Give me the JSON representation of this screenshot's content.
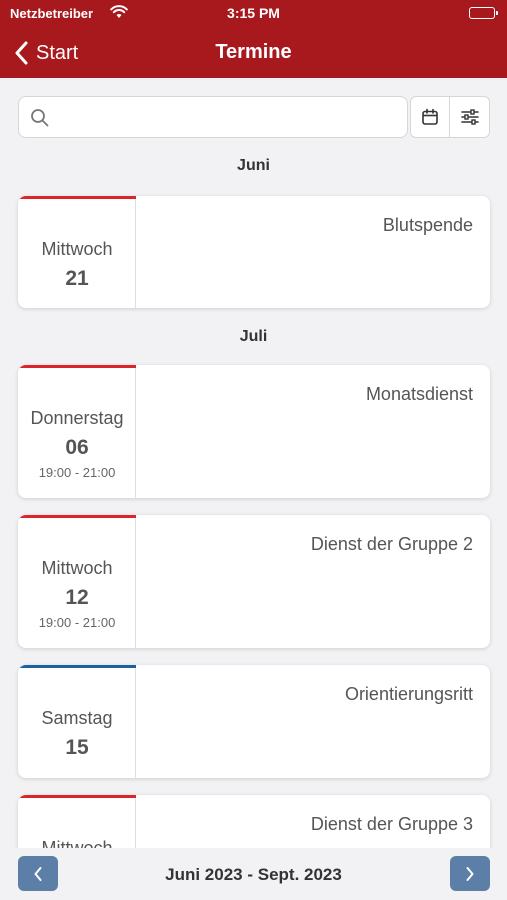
{
  "statusbar": {
    "carrier": "Netzbetreiber",
    "time": "3:15 PM"
  },
  "header": {
    "back_label": "Start",
    "title": "Termine"
  },
  "search": {
    "placeholder": ""
  },
  "colors": {
    "header": "#a8191d",
    "accent_red": "#d9262b",
    "accent_blue": "#1d5fa0",
    "nav_button": "#5b7fa7"
  },
  "months": [
    "Juni",
    "Juli"
  ],
  "events": [
    {
      "weekday": "Mittwoch",
      "day": "21",
      "time": "",
      "title": "Blutspende",
      "accent": "red"
    },
    {
      "weekday": "Donnerstag",
      "day": "06",
      "time": "19:00 - 21:00",
      "title": "Monatsdienst",
      "accent": "red"
    },
    {
      "weekday": "Mittwoch",
      "day": "12",
      "time": "19:00 - 21:00",
      "title": "Dienst der Gruppe 2",
      "accent": "red"
    },
    {
      "weekday": "Samstag",
      "day": "15",
      "time": "",
      "title": "Orientierungsritt",
      "accent": "blue"
    },
    {
      "weekday": "Mittwoch",
      "day": "",
      "time": "",
      "title": "Dienst der Gruppe 3",
      "accent": "red"
    }
  ],
  "footer": {
    "range": "Juni 2023 - Sept. 2023"
  }
}
